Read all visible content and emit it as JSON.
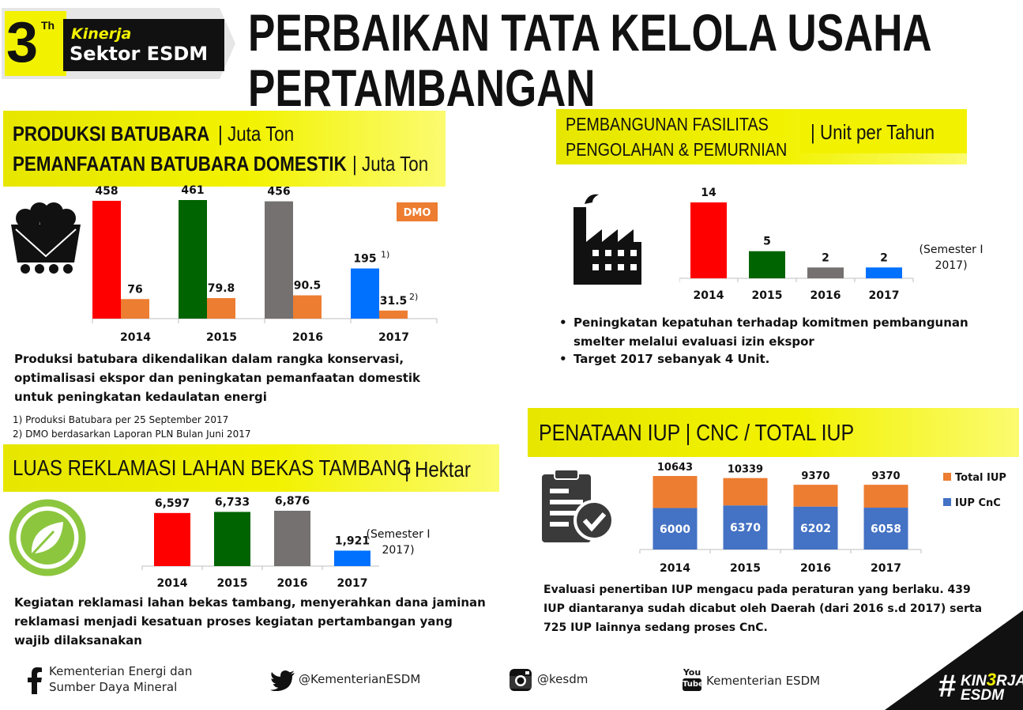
{
  "badge": {
    "number": "3",
    "superscript": "Th",
    "line1": "Kinerja",
    "line2": "Sektor ESDM"
  },
  "title": {
    "line1": "PERBAIKAN TATA KELOLA USAHA",
    "line2": "PERTAMBANGAN"
  },
  "coal": {
    "heading1": "PRODUKSI BATUBARA",
    "unit1": "| Juta Ton",
    "heading2": "PEMANFAATAN BATUBARA DOMESTIK",
    "unit2": "| Juta Ton",
    "legend": "DMO",
    "description": "Produksi batubara dikendalikan dalam rangka konservasi, optimalisasi ekspor dan peningkatan pemanfaatan domestik untuk peningkatan kedaulatan energi",
    "note1": "1) Produksi Batubara per 25 September 2017",
    "note2": "2) DMO berdasarkan Laporan PLN Bulan Juni 2017"
  },
  "smelter": {
    "heading_line1": "PEMBANGUNAN FASILITAS",
    "heading_line2": "PENGOLAHAN & PEMURNIAN",
    "unit": "| Unit per Tahun",
    "note_line1": "(Semester I",
    "note_line2": "2017)",
    "bullet1": "Peningkatan kepatuhan terhadap komitmen pembangunan smelter melalui evaluasi izin ekspor",
    "bullet2": "Target 2017 sebanyak 4 Unit."
  },
  "reclamation": {
    "heading": "LUAS REKLAMASI LAHAN BEKAS TAMBANG",
    "unit": "| Hektar",
    "note_line1": "(Semester I",
    "note_line2": "2017)",
    "description": "Kegiatan reklamasi lahan bekas tambang, menyerahkan dana jaminan reklamasi  menjadi kesatuan proses kegiatan pertambangan yang wajib dilaksanakan"
  },
  "iup": {
    "heading": "PENATAAN IUP | CNC / TOTAL IUP",
    "description": "Evaluasi penertiban IUP mengacu pada peraturan yang berlaku. 439 IUP diantaranya sudah dicabut oleh Daerah (dari 2016 s.d 2017) serta 725 IUP lainnya sedang proses CnC."
  },
  "footer": {
    "facebook_line1": "Kementerian Energi dan",
    "facebook_line2": "Sumber Daya Mineral",
    "twitter": "@KementerianESDM",
    "instagram": "@kesdm",
    "youtube": "Kementerian ESDM",
    "youtube_logo_top": "You",
    "youtube_logo_bottom": "Tube",
    "hashtag_symbol": "#",
    "hashtag_top_a": "KIN",
    "hashtag_top_b": "3",
    "hashtag_top_c": "RJA",
    "hashtag_bottom": "ESDM"
  },
  "colors": {
    "yellow": "#f2f200",
    "red": "#ff0000",
    "green": "#006400",
    "gray": "#767171",
    "blue": "#0070ff",
    "orange": "#ed7d31",
    "steel_blue": "#4472c4"
  },
  "chart_data": [
    {
      "id": "coal",
      "type": "bar",
      "categories": [
        "2014",
        "2015",
        "2016",
        "2017"
      ],
      "series": [
        {
          "values": [
            458,
            461,
            456,
            195
          ],
          "labels": [
            "458",
            "461",
            "456",
            "195"
          ],
          "label_notes": [
            "",
            "",
            "",
            "1)"
          ],
          "colors": [
            "#ff0000",
            "#006400",
            "#767171",
            "#0070ff"
          ]
        },
        {
          "name": "DMO",
          "values": [
            76,
            79.8,
            90.5,
            31.5
          ],
          "labels": [
            "76",
            "79.8",
            "90.5",
            "31.5"
          ],
          "label_notes": [
            "",
            "",
            "",
            "2)"
          ],
          "colors": [
            "#ed7d31",
            "#ed7d31",
            "#ed7d31",
            "#ed7d31"
          ]
        }
      ],
      "ylim": [
        0,
        461
      ]
    },
    {
      "id": "smelter",
      "type": "bar",
      "categories": [
        "2014",
        "2015",
        "2016",
        "2017"
      ],
      "series": [
        {
          "values": [
            14,
            5,
            2,
            2
          ],
          "labels": [
            "14",
            "5",
            "2",
            "2"
          ],
          "colors": [
            "#ff0000",
            "#006400",
            "#767171",
            "#0070ff"
          ]
        }
      ],
      "ylim": [
        0,
        14
      ]
    },
    {
      "id": "reclamation",
      "type": "bar",
      "categories": [
        "2014",
        "2015",
        "2016",
        "2017"
      ],
      "series": [
        {
          "values": [
            6597,
            6733,
            6876,
            1921
          ],
          "labels": [
            "6,597",
            "6,733",
            "6,876",
            "1,921"
          ],
          "colors": [
            "#ff0000",
            "#006400",
            "#767171",
            "#0070ff"
          ]
        }
      ],
      "ylim": [
        0,
        6876
      ]
    },
    {
      "id": "iup",
      "type": "bar",
      "stacked": true,
      "categories": [
        "2014",
        "2015",
        "2016",
        "2017"
      ],
      "series": [
        {
          "name": "IUP CnC",
          "values": [
            6000,
            6370,
            6202,
            6058
          ],
          "labels": [
            "6000",
            "6370",
            "6202",
            "6058"
          ],
          "color": "#4472c4"
        },
        {
          "name": "Total IUP",
          "values": [
            10643,
            10339,
            9370,
            9370
          ],
          "labels": [
            "10643",
            "10339",
            "9370",
            "9370"
          ],
          "color": "#ed7d31"
        }
      ],
      "legend_order": [
        "Total IUP",
        "IUP CnC"
      ],
      "legend": "right"
    }
  ]
}
